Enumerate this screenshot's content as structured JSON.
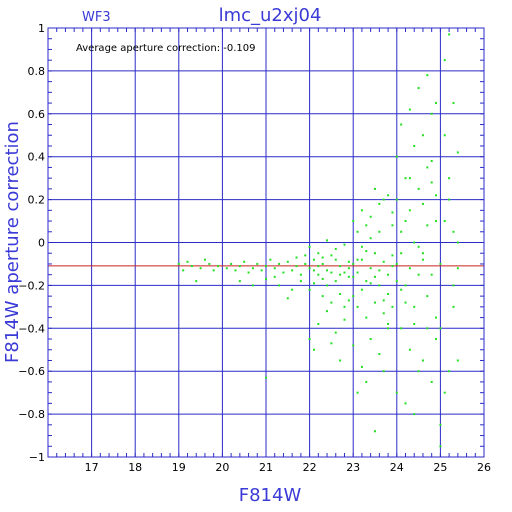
{
  "chart_data": {
    "type": "scatter",
    "title": "lmc_u2xj04",
    "subtitle": "WF3",
    "xlabel": "F814W",
    "ylabel": "F814W aperture correction",
    "annotation": "Average aperture correction: -0.109",
    "xlim": [
      16,
      26
    ],
    "ylim": [
      -1,
      1
    ],
    "x_ticks": [
      17,
      18,
      19,
      20,
      21,
      22,
      23,
      24,
      25,
      26
    ],
    "y_ticks": [
      -1,
      -0.8,
      -0.6,
      -0.4,
      -0.2,
      0,
      0.2,
      0.4,
      0.6,
      0.8,
      1
    ],
    "y_tick_labels": [
      "−1",
      "−0.8",
      "−0.6",
      "−0.4",
      "−0.2",
      "0",
      "0.2",
      "0.4",
      "0.6",
      "0.8",
      "1"
    ],
    "grid": true,
    "average_line": -0.109,
    "colors": {
      "axis": "#2b2bc8",
      "points": "#22e022",
      "average_line": "#c82020",
      "title": "#3a3ad6"
    },
    "series": [
      {
        "points": [
          [
            19.0,
            -0.1
          ],
          [
            19.1,
            -0.13
          ],
          [
            19.2,
            -0.09
          ],
          [
            19.3,
            -0.11
          ],
          [
            19.5,
            -0.12
          ],
          [
            19.6,
            -0.08
          ],
          [
            19.7,
            -0.1
          ],
          [
            19.8,
            -0.13
          ],
          [
            19.4,
            -0.18
          ],
          [
            19.9,
            -0.11
          ],
          [
            20.1,
            -0.12
          ],
          [
            20.2,
            -0.1
          ],
          [
            20.3,
            -0.13
          ],
          [
            20.4,
            -0.11
          ],
          [
            20.5,
            -0.09
          ],
          [
            20.6,
            -0.14
          ],
          [
            20.7,
            -0.12
          ],
          [
            20.8,
            -0.1
          ],
          [
            20.9,
            -0.13
          ],
          [
            21.0,
            -0.11
          ],
          [
            20.4,
            -0.18
          ],
          [
            20.7,
            -0.2
          ],
          [
            21.0,
            -0.17
          ],
          [
            21.1,
            -0.08
          ],
          [
            21.2,
            -0.12
          ],
          [
            21.3,
            -0.1
          ],
          [
            21.4,
            -0.14
          ],
          [
            21.5,
            -0.09
          ],
          [
            21.6,
            -0.13
          ],
          [
            21.7,
            -0.11
          ],
          [
            21.8,
            -0.15
          ],
          [
            21.9,
            -0.1
          ],
          [
            21.3,
            -0.2
          ],
          [
            21.6,
            -0.22
          ],
          [
            21.8,
            -0.18
          ],
          [
            21.0,
            -0.63
          ],
          [
            21.5,
            -0.26
          ],
          [
            21.9,
            -0.06
          ],
          [
            21.2,
            -0.16
          ],
          [
            21.7,
            -0.07
          ],
          [
            22.0,
            -0.12
          ],
          [
            22.1,
            -0.08
          ],
          [
            22.2,
            -0.15
          ],
          [
            22.3,
            -0.1
          ],
          [
            22.4,
            -0.13
          ],
          [
            22.5,
            -0.06
          ],
          [
            22.6,
            -0.18
          ],
          [
            22.7,
            -0.11
          ],
          [
            22.8,
            -0.14
          ],
          [
            22.9,
            -0.09
          ],
          [
            22.0,
            -0.22
          ],
          [
            22.1,
            -0.19
          ],
          [
            22.2,
            -0.05
          ],
          [
            22.3,
            -0.25
          ],
          [
            22.4,
            -0.2
          ],
          [
            22.5,
            -0.28
          ],
          [
            22.6,
            -0.03
          ],
          [
            22.7,
            -0.24
          ],
          [
            22.8,
            -0.3
          ],
          [
            22.9,
            -0.16
          ],
          [
            22.0,
            -0.45
          ],
          [
            22.2,
            -0.38
          ],
          [
            22.4,
            -0.32
          ],
          [
            22.6,
            -0.42
          ],
          [
            22.8,
            -0.36
          ],
          [
            22.1,
            -0.5
          ],
          [
            22.5,
            -0.47
          ],
          [
            22.7,
            -0.55
          ],
          [
            22.3,
            -0.07
          ],
          [
            22.9,
            -0.27
          ],
          [
            22.0,
            -0.02
          ],
          [
            22.4,
            0.01
          ],
          [
            22.8,
            -0.01
          ],
          [
            22.6,
            -0.08
          ],
          [
            22.2,
            -0.11
          ],
          [
            22.9,
            -0.12
          ],
          [
            22.5,
            -0.14
          ],
          [
            22.3,
            -0.17
          ],
          [
            22.7,
            -0.15
          ],
          [
            22.1,
            -0.13
          ],
          [
            23.0,
            -0.1
          ],
          [
            23.1,
            -0.14
          ],
          [
            23.2,
            -0.08
          ],
          [
            23.3,
            -0.18
          ],
          [
            23.4,
            -0.12
          ],
          [
            23.5,
            -0.05
          ],
          [
            23.6,
            -0.2
          ],
          [
            23.7,
            -0.09
          ],
          [
            23.8,
            -0.15
          ],
          [
            23.9,
            -0.11
          ],
          [
            23.0,
            -0.25
          ],
          [
            23.1,
            -0.3
          ],
          [
            23.2,
            -0.02
          ],
          [
            23.3,
            -0.35
          ],
          [
            23.4,
            0.02
          ],
          [
            23.5,
            -0.28
          ],
          [
            23.6,
            0.05
          ],
          [
            23.7,
            -0.33
          ],
          [
            23.8,
            -0.4
          ],
          [
            23.9,
            0.08
          ],
          [
            23.0,
            -0.48
          ],
          [
            23.2,
            -0.58
          ],
          [
            23.4,
            -0.45
          ],
          [
            23.6,
            -0.52
          ],
          [
            23.8,
            -0.38
          ],
          [
            23.1,
            -0.7
          ],
          [
            23.3,
            -0.65
          ],
          [
            23.5,
            -0.88
          ],
          [
            23.7,
            -0.6
          ],
          [
            23.9,
            -0.3
          ],
          [
            23.0,
            0.1
          ],
          [
            23.2,
            0.15
          ],
          [
            23.4,
            0.12
          ],
          [
            23.6,
            0.18
          ],
          [
            23.8,
            0.22
          ],
          [
            23.1,
            0.05
          ],
          [
            23.3,
            0.08
          ],
          [
            23.5,
            0.25
          ],
          [
            23.7,
            0.2
          ],
          [
            23.9,
            0.14
          ],
          [
            23.0,
            -0.16
          ],
          [
            23.2,
            -0.22
          ],
          [
            23.4,
            -0.19
          ],
          [
            23.6,
            -0.13
          ],
          [
            23.8,
            -0.24
          ],
          [
            23.9,
            -0.06
          ],
          [
            23.5,
            -0.16
          ],
          [
            23.3,
            -0.04
          ],
          [
            23.1,
            -0.08
          ],
          [
            23.7,
            -0.27
          ],
          [
            24.0,
            -0.1
          ],
          [
            24.1,
            0.05
          ],
          [
            24.2,
            -0.2
          ],
          [
            24.3,
            0.15
          ],
          [
            24.4,
            -0.3
          ],
          [
            24.5,
            0.25
          ],
          [
            24.6,
            -0.05
          ],
          [
            24.7,
            0.35
          ],
          [
            24.8,
            -0.15
          ],
          [
            24.9,
            0.1
          ],
          [
            24.0,
            0.4
          ],
          [
            24.1,
            -0.4
          ],
          [
            24.2,
            0.3
          ],
          [
            24.3,
            -0.5
          ],
          [
            24.4,
            0.45
          ],
          [
            24.5,
            -0.6
          ],
          [
            24.6,
            0.5
          ],
          [
            24.7,
            -0.25
          ],
          [
            24.8,
            0.6
          ],
          [
            24.9,
            -0.35
          ],
          [
            24.0,
            -0.7
          ],
          [
            24.2,
            -0.75
          ],
          [
            24.4,
            -0.8
          ],
          [
            24.6,
            -0.55
          ],
          [
            24.8,
            -0.65
          ],
          [
            24.1,
            0.55
          ],
          [
            24.3,
            0.62
          ],
          [
            24.5,
            0.72
          ],
          [
            24.7,
            0.78
          ],
          [
            24.9,
            0.65
          ],
          [
            24.0,
            0.2
          ],
          [
            24.2,
            0.1
          ],
          [
            24.4,
            0.0
          ],
          [
            24.6,
            0.18
          ],
          [
            24.8,
            0.28
          ],
          [
            24.1,
            -0.22
          ],
          [
            24.3,
            -0.12
          ],
          [
            24.5,
            -0.02
          ],
          [
            24.7,
            0.08
          ],
          [
            24.9,
            -0.45
          ],
          [
            24.0,
            -0.18
          ],
          [
            24.2,
            -0.28
          ],
          [
            24.4,
            -0.38
          ],
          [
            24.6,
            -0.08
          ],
          [
            24.8,
            0.38
          ],
          [
            24.1,
            -0.05
          ],
          [
            24.3,
            0.3
          ],
          [
            24.5,
            -0.15
          ],
          [
            24.7,
            -0.4
          ],
          [
            24.9,
            0.22
          ],
          [
            25.0,
            -0.1
          ],
          [
            25.1,
            0.1
          ],
          [
            25.2,
            0.3
          ],
          [
            25.3,
            -0.2
          ],
          [
            25.4,
            0.0
          ],
          [
            25.0,
            -0.4
          ],
          [
            25.1,
            0.5
          ],
          [
            25.2,
            -0.6
          ],
          [
            25.3,
            0.65
          ],
          [
            25.4,
            -0.55
          ],
          [
            25.0,
            -0.85
          ],
          [
            25.1,
            0.85
          ],
          [
            25.2,
            0.97
          ],
          [
            25.3,
            -0.3
          ],
          [
            25.4,
            0.42
          ],
          [
            25.0,
            -0.95
          ],
          [
            25.1,
            -0.7
          ],
          [
            25.2,
            0.2
          ],
          [
            25.3,
            0.05
          ],
          [
            25.4,
            -0.12
          ]
        ]
      }
    ]
  }
}
